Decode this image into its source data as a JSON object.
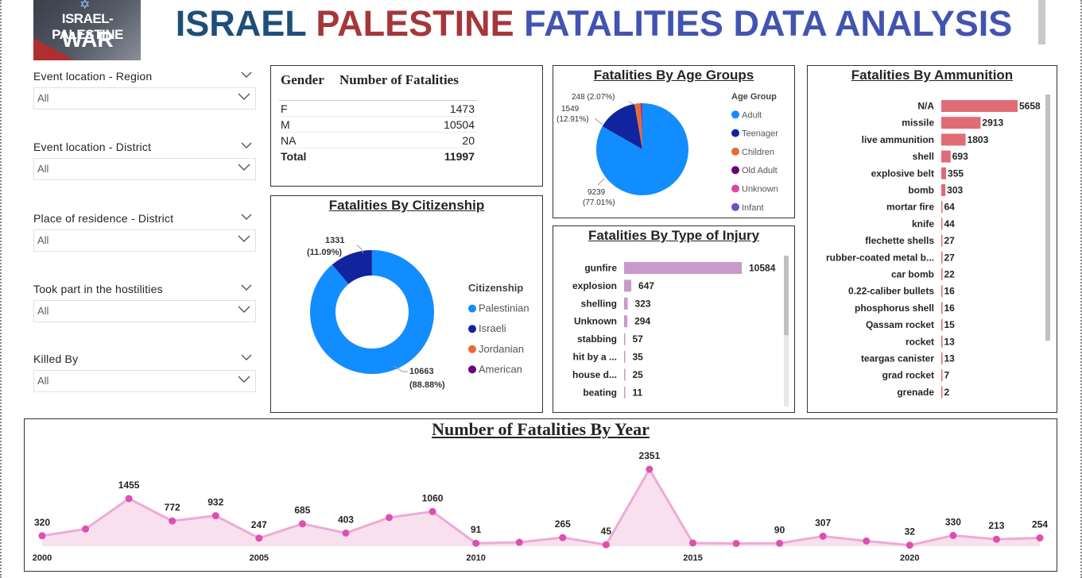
{
  "logo": {
    "line1": "ISRAEL-PALESTINE",
    "line2": "WAR"
  },
  "title": {
    "part1": "ISRAEL",
    "part2": "PALESTINE",
    "part3": "FATALITIES DATA ANALYSIS"
  },
  "slicers": [
    {
      "label": "Event location - Region",
      "value": "All"
    },
    {
      "label": "Event location - District",
      "value": "All"
    },
    {
      "label": "Place of residence - District",
      "value": "All"
    },
    {
      "label": "Took part in the hostilities",
      "value": "All"
    },
    {
      "label": "Killed By",
      "value": "All"
    }
  ],
  "gender_table": {
    "col1": "Gender",
    "col2": "Number of Fatalities",
    "rows": [
      {
        "gender": "F",
        "value": "1473"
      },
      {
        "gender": "M",
        "value": "10504"
      },
      {
        "gender": "NA",
        "value": "20"
      }
    ],
    "total_label": "Total",
    "total_value": "11997"
  },
  "chart_data": [
    {
      "type": "pie",
      "title": "Fatalities By Age Groups",
      "legend_title": "Age Group",
      "legend_position": "right",
      "categories": [
        "Adult",
        "Teenager",
        "Children",
        "Old Adult",
        "Unknown",
        "Infant"
      ],
      "values": [
        9239,
        1549,
        248,
        41,
        12,
        4
      ],
      "colors": [
        "#118dff",
        "#12239e",
        "#e66c37",
        "#6b007b",
        "#e044a7",
        "#744ec2"
      ],
      "data_labels": [
        {
          "category": "Adult",
          "text1": "9239",
          "text2": "(77.01%)"
        },
        {
          "category": "Teenager",
          "text1": "1549",
          "text2": "(12.91%)"
        },
        {
          "category": "Children",
          "text1": "248 (2.07%)",
          "text2": ""
        }
      ]
    },
    {
      "type": "pie",
      "subtype": "donut",
      "title": "Fatalities By Citizenship",
      "legend_title": "Citizenship",
      "legend_position": "right",
      "categories": [
        "Palestinian",
        "Israeli",
        "Jordanian",
        "American"
      ],
      "values": [
        10663,
        1331,
        2,
        1
      ],
      "colors": [
        "#118dff",
        "#12239e",
        "#e66c37",
        "#6b007b"
      ],
      "data_labels": [
        {
          "category": "Palestinian",
          "text1": "10663",
          "text2": "(88.88%)"
        },
        {
          "category": "Israeli",
          "text1": "1331",
          "text2": "(11.09%)"
        }
      ]
    },
    {
      "type": "bar",
      "orientation": "horizontal",
      "title": "Fatalities By Type of Injury",
      "color": "#c89ac9",
      "categories": [
        "gunfire",
        "explosion",
        "shelling",
        "Unknown",
        "stabbing",
        "hit by a ...",
        "house d...",
        "beating"
      ],
      "values": [
        10584,
        647,
        323,
        294,
        57,
        35,
        25,
        11
      ]
    },
    {
      "type": "bar",
      "orientation": "horizontal",
      "title": "Fatalities By Ammunition",
      "color": "#e06c75",
      "categories": [
        "N/A",
        "missile",
        "live ammunition",
        "shell",
        "explosive belt",
        "bomb",
        "mortar fire",
        "knife",
        "flechette shells",
        "rubber-coated metal b...",
        "car bomb",
        "0.22-caliber bullets",
        "phosphorus shell",
        "Qassam rocket",
        "rocket",
        "teargas canister",
        "grad rocket",
        "grenade"
      ],
      "values": [
        5658,
        2913,
        1803,
        693,
        355,
        303,
        64,
        44,
        27,
        27,
        22,
        16,
        16,
        15,
        13,
        13,
        7,
        2
      ]
    },
    {
      "type": "area",
      "title": "Number of Fatalities By Year",
      "color": "#e87ec4",
      "x": [
        2000,
        2001,
        2002,
        2003,
        2004,
        2005,
        2006,
        2007,
        2008,
        2009,
        2010,
        2011,
        2012,
        2013,
        2014,
        2015,
        2016,
        2017,
        2018,
        2019,
        2020,
        2021,
        2022,
        2023
      ],
      "values": [
        320,
        526,
        1455,
        772,
        932,
        247,
        685,
        403,
        876,
        1060,
        91,
        120,
        265,
        45,
        2351,
        100,
        85,
        90,
        307,
        160,
        32,
        330,
        213,
        254
      ],
      "labeled": [
        true,
        false,
        true,
        true,
        true,
        true,
        true,
        true,
        false,
        true,
        true,
        false,
        true,
        true,
        true,
        false,
        false,
        true,
        true,
        false,
        true,
        true,
        true,
        true
      ],
      "x_ticks": [
        "2000",
        "2005",
        "2010",
        "2015",
        "2020"
      ]
    }
  ]
}
